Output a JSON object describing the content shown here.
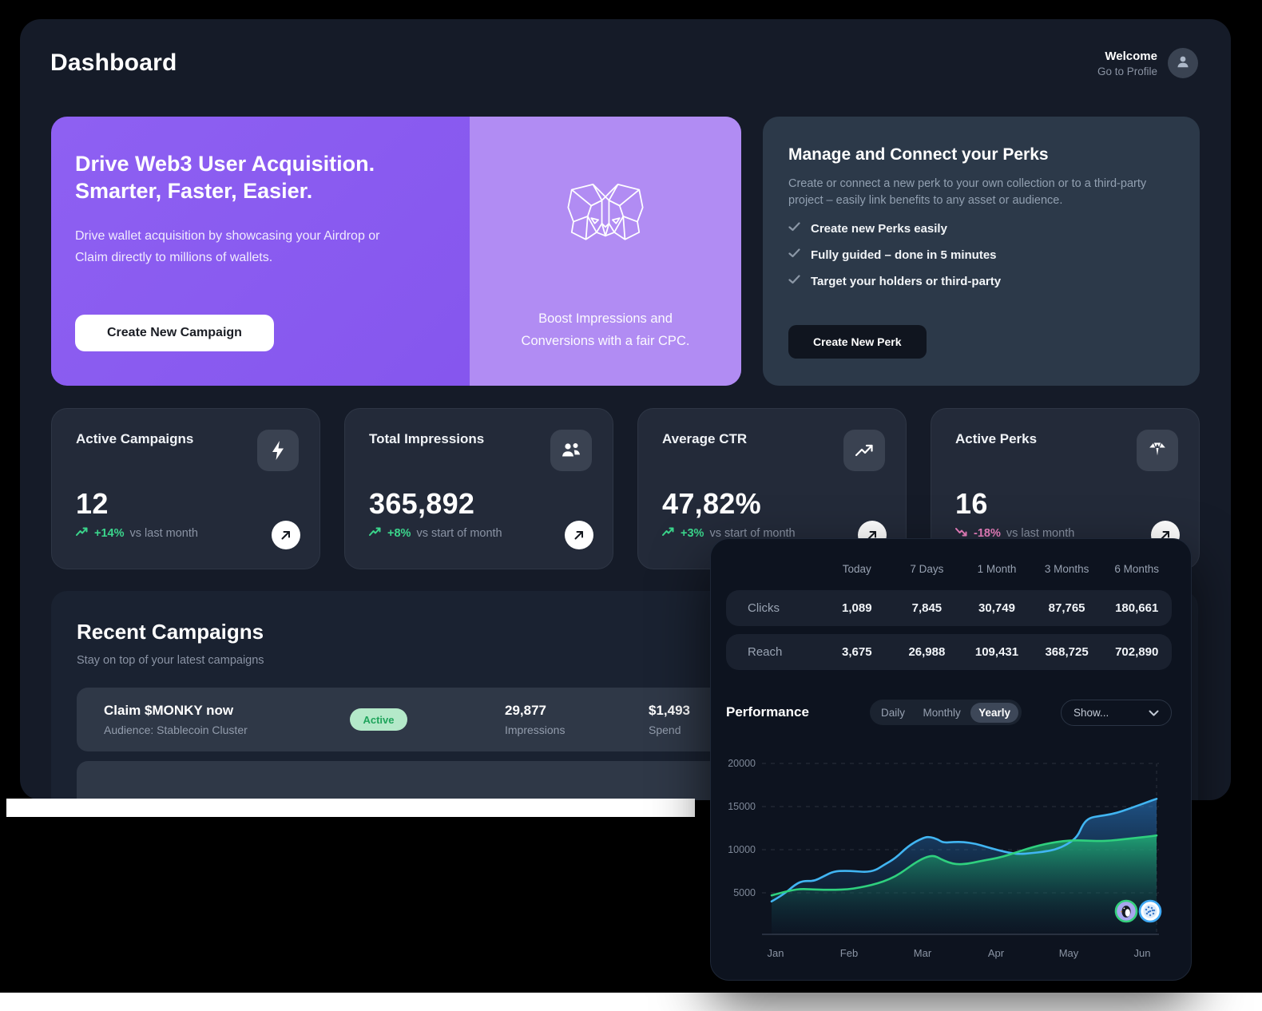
{
  "app": {
    "title": "Dashboard"
  },
  "header": {
    "welcome": "Welcome",
    "profile": "Go to Profile"
  },
  "banner": {
    "heading1": "Drive Web3 User Acquisition.",
    "heading2": "Smarter, Faster, Easier.",
    "body": "Drive wallet acquisition by showcasing your Airdrop or Claim directly to millions of wallets.",
    "cta": "Create New Campaign",
    "caption1": "Boost Impressions and",
    "caption2": "Conversions with a fair CPC."
  },
  "perks": {
    "title": "Manage and Connect your Perks",
    "body": "Create or connect a new perk to your own collection or to a third-party project – easily link benefits to any asset or audience.",
    "bullets": [
      "Create new Perks easily",
      "Fully guided – done in 5 minutes",
      "Target your holders or third-party"
    ],
    "cta": "Create New Perk"
  },
  "stats": [
    {
      "label": "Active Campaigns",
      "value": "12",
      "trend": "+14%",
      "suffix": "vs last month",
      "direction": "up",
      "icon": "bolt-icon"
    },
    {
      "label": "Total Impressions",
      "value": "365,892",
      "trend": "+8%",
      "suffix": "vs start of month",
      "direction": "up",
      "icon": "users-icon"
    },
    {
      "label": "Average CTR",
      "value": "47,82%",
      "trend": "+3%",
      "suffix": "vs start of month",
      "direction": "up",
      "icon": "trending-up-icon"
    },
    {
      "label": "Active Perks",
      "value": "16",
      "trend": "-18%",
      "suffix": "vs last month",
      "direction": "down",
      "icon": "gem-icon"
    }
  ],
  "recent": {
    "title": "Recent Campaigns",
    "subtitle": "Stay on top of your latest campaigns",
    "campaigns": [
      {
        "name": "Claim $MONKY now",
        "audience": "Audience: Stablecoin Cluster",
        "status": "Active",
        "impressions": "29,877",
        "impressions_label": "Impressions",
        "spend": "$1,493",
        "spend_label": "Spend"
      }
    ]
  },
  "metrics_panel": {
    "columns": [
      "Today",
      "7 Days",
      "1 Month",
      "3 Months",
      "6 Months"
    ],
    "rows": [
      {
        "label": "Clicks",
        "values": [
          "1,089",
          "7,845",
          "30,749",
          "87,765",
          "180,661"
        ]
      },
      {
        "label": "Reach",
        "values": [
          "3,675",
          "26,988",
          "109,431",
          "368,725",
          "702,890"
        ]
      }
    ],
    "performance_title": "Performance",
    "tabs": [
      "Daily",
      "Monthly",
      "Yearly"
    ],
    "active_tab": "Yearly",
    "show_label": "Show..."
  },
  "chart_data": {
    "type": "area",
    "title": "Performance",
    "x_ticks": [
      "Jan",
      "Feb",
      "Mar",
      "Apr",
      "May",
      "Jun"
    ],
    "y_ticks": [
      5000,
      10000,
      15000,
      20000
    ],
    "ylim": [
      0,
      20000
    ],
    "grid": "dashed-horizontal",
    "legend_position": "bottom-right-in-plot",
    "series": [
      {
        "name": "series-blue",
        "color": "#41B5F2",
        "points": [
          [
            60,
            4000
          ],
          [
            75,
            4800
          ],
          [
            90,
            6000
          ],
          [
            100,
            6400
          ],
          [
            113,
            6350
          ],
          [
            125,
            6900
          ],
          [
            138,
            7500
          ],
          [
            152,
            7550
          ],
          [
            165,
            7500
          ],
          [
            178,
            7400
          ],
          [
            190,
            7600
          ],
          [
            200,
            8200
          ],
          [
            215,
            9000
          ],
          [
            232,
            10500
          ],
          [
            250,
            11400
          ],
          [
            258,
            11500
          ],
          [
            268,
            11200
          ],
          [
            275,
            10800
          ],
          [
            288,
            10900
          ],
          [
            300,
            10900
          ],
          [
            315,
            10700
          ],
          [
            330,
            10300
          ],
          [
            345,
            9900
          ],
          [
            360,
            9600
          ],
          [
            371,
            9500
          ],
          [
            385,
            9600
          ],
          [
            400,
            9750
          ],
          [
            415,
            10000
          ],
          [
            430,
            10600
          ],
          [
            443,
            11500
          ],
          [
            450,
            13000
          ],
          [
            458,
            13700
          ],
          [
            470,
            13900
          ],
          [
            485,
            14100
          ],
          [
            500,
            14500
          ],
          [
            515,
            15000
          ],
          [
            530,
            15500
          ],
          [
            542,
            15900
          ]
        ]
      },
      {
        "name": "series-green",
        "color": "#2FD07E",
        "points": [
          [
            60,
            4700
          ],
          [
            72,
            5000
          ],
          [
            85,
            5300
          ],
          [
            97,
            5450
          ],
          [
            110,
            5400
          ],
          [
            125,
            5350
          ],
          [
            140,
            5350
          ],
          [
            155,
            5400
          ],
          [
            170,
            5600
          ],
          [
            185,
            5900
          ],
          [
            200,
            6300
          ],
          [
            215,
            6900
          ],
          [
            228,
            7700
          ],
          [
            240,
            8500
          ],
          [
            252,
            9100
          ],
          [
            263,
            9350
          ],
          [
            272,
            8900
          ],
          [
            282,
            8500
          ],
          [
            292,
            8300
          ],
          [
            305,
            8350
          ],
          [
            320,
            8650
          ],
          [
            335,
            8900
          ],
          [
            350,
            9200
          ],
          [
            365,
            9650
          ],
          [
            380,
            10100
          ],
          [
            395,
            10500
          ],
          [
            410,
            10800
          ],
          [
            425,
            11000
          ],
          [
            440,
            11100
          ],
          [
            455,
            11050
          ],
          [
            470,
            11000
          ],
          [
            485,
            11050
          ],
          [
            500,
            11200
          ],
          [
            515,
            11350
          ],
          [
            530,
            11500
          ],
          [
            542,
            11650
          ]
        ]
      }
    ],
    "legend_icons": [
      {
        "name": "penguin-token-icon",
        "ring": "#35D07C",
        "fill": "#A8A6EF"
      },
      {
        "name": "sphere-token-icon",
        "ring": "#3FA9F5",
        "fill": "#FFFFFF"
      }
    ]
  }
}
